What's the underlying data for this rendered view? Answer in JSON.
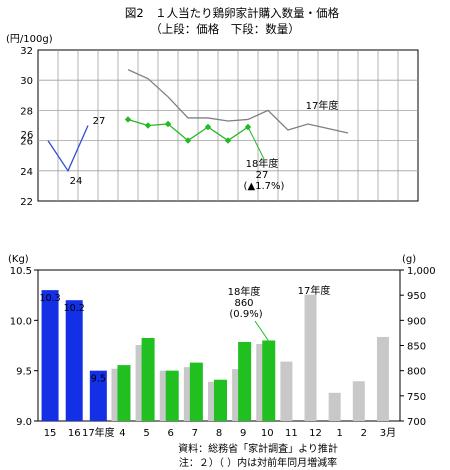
{
  "title": "図2　１人当たり鶏卵家計購入数量・価格",
  "subtitle": "（上段：価格　下段：数量）",
  "footer": {
    "source": "資料：総務省「家計調査」より推計",
    "note": "注：２）（ ）内は対前年同月増減率"
  },
  "chart_data": [
    {
      "type": "line",
      "name": "price",
      "ylabel": "(円/100g)",
      "ylim": [
        22,
        32
      ],
      "yticks": [
        22,
        24,
        26,
        28,
        30,
        32
      ],
      "grid": true,
      "x_slots": 19,
      "series": [
        {
          "name": "",
          "color": "#2f4fd6",
          "points": [
            [
              0,
              26
            ],
            [
              1,
              24
            ],
            [
              2,
              27
            ]
          ]
        },
        {
          "name": "17年度",
          "color": "#808080",
          "points": [
            [
              4,
              30.7
            ],
            [
              5,
              30.1
            ],
            [
              6,
              28.9
            ],
            [
              7,
              27.5
            ],
            [
              8,
              27.5
            ],
            [
              9,
              27.3
            ],
            [
              10,
              27.4
            ],
            [
              11,
              28.0
            ],
            [
              12,
              26.7
            ],
            [
              13,
              27.1
            ],
            [
              14,
              26.8
            ],
            [
              15,
              26.5
            ]
          ]
        },
        {
          "name": "18年度",
          "color": "#22b922",
          "marker": "diamond",
          "points": [
            [
              4,
              27.4
            ],
            [
              5,
              27.0
            ],
            [
              6,
              27.1
            ],
            [
              7,
              26.0
            ],
            [
              8,
              26.9
            ],
            [
              9,
              26.0
            ],
            [
              10,
              26.9
            ]
          ]
        }
      ],
      "labels": [
        {
          "text": "26",
          "series": 0,
          "point": 0
        },
        {
          "text": "24",
          "series": 0,
          "point": 1
        },
        {
          "text": "27",
          "series": 0,
          "point": 2
        },
        {
          "text": "17年度",
          "series": 1
        },
        {
          "text": "18年度",
          "series": 2
        },
        {
          "text": "27",
          "series": 2
        },
        {
          "text": "(▲1.7%)",
          "series": 2
        }
      ]
    },
    {
      "type": "bar",
      "name": "quantity",
      "categories": [
        "15",
        "16",
        "17年度",
        "4",
        "5",
        "6",
        "7",
        "8",
        "9",
        "10",
        "11",
        "12",
        "1",
        "2",
        "3月"
      ],
      "ylabel_left": "(Kg)",
      "ylim_left": [
        9.0,
        10.5
      ],
      "yticks_left": [
        "9.0",
        "9.5",
        "10.0",
        "10.5"
      ],
      "ylabel_right": "(g)",
      "ylim_right": [
        700,
        1000
      ],
      "yticks_right": [
        "700",
        "750",
        "800",
        "850",
        "900",
        "950",
        "1,000"
      ],
      "annual_series": {
        "axis": "left",
        "color": "#1430e6",
        "values": [
          10.3,
          10.2,
          9.5
        ],
        "labels": [
          "10.3",
          "10.2",
          "9.5"
        ]
      },
      "monthly_17": {
        "name": "17年度",
        "axis": "right",
        "color": "#c8c8c8",
        "values": [
          804,
          851,
          800,
          807,
          778,
          803,
          853,
          818,
          951,
          756,
          779,
          867
        ]
      },
      "monthly_18": {
        "name": "18年度",
        "axis": "right",
        "color": "#1fc01f",
        "values": [
          811,
          865,
          800,
          816,
          782,
          857,
          860
        ]
      },
      "annotations": [
        {
          "text": "17年度"
        },
        {
          "text": "18年度"
        },
        {
          "text": "860"
        },
        {
          "text": "(0.9%)"
        }
      ]
    }
  ]
}
